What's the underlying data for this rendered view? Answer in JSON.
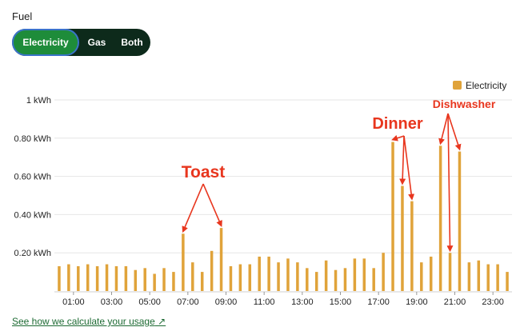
{
  "fuel": {
    "label": "Fuel",
    "options": [
      "Electricity",
      "Gas",
      "Both"
    ],
    "selected": "Electricity"
  },
  "link_text": "See how we calculate your usage",
  "colors": {
    "bar": "#e0a33a",
    "annotation": "#e8361e",
    "toggle_active": "#1e8c3a",
    "toggle_bg": "#0d2a1b"
  },
  "chart_data": {
    "type": "bar",
    "legend": [
      "Electricity"
    ],
    "legend_position": "top-right",
    "y_ticks": [
      "0.20 kWh",
      "0.40 kWh",
      "0.60 kWh",
      "0.80 kWh",
      "1 kWh"
    ],
    "ylim": [
      0,
      1
    ],
    "x_ticks": [
      "01:00",
      "03:00",
      "05:00",
      "07:00",
      "09:00",
      "11:00",
      "13:00",
      "15:00",
      "17:00",
      "19:00",
      "21:00",
      "23:00"
    ],
    "grid": true,
    "series": [
      {
        "name": "Electricity",
        "values": [
          0.13,
          0.14,
          0.13,
          0.14,
          0.13,
          0.14,
          0.13,
          0.13,
          0.11,
          0.12,
          0.09,
          0.12,
          0.1,
          0.3,
          0.15,
          0.1,
          0.21,
          0.33,
          0.13,
          0.14,
          0.14,
          0.18,
          0.18,
          0.15,
          0.17,
          0.15,
          0.12,
          0.1,
          0.16,
          0.11,
          0.12,
          0.17,
          0.17,
          0.12,
          0.2,
          0.78,
          0.55,
          0.47,
          0.15,
          0.18,
          0.76,
          0.2,
          0.73,
          0.15,
          0.16,
          0.14,
          0.14,
          0.1
        ]
      }
    ],
    "annotations": [
      {
        "text": "Toast",
        "targets": [
          13,
          17
        ]
      },
      {
        "text": "Dinner",
        "targets": [
          35,
          36,
          37
        ]
      },
      {
        "text": "Dishwasher",
        "targets": [
          40,
          41,
          42
        ]
      }
    ]
  }
}
